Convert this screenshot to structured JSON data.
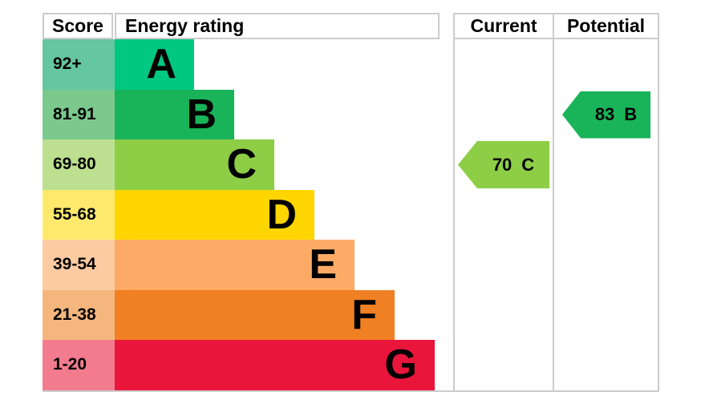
{
  "header": {
    "score": "Score",
    "energy_rating": "Energy rating",
    "current": "Current",
    "potential": "Potential"
  },
  "chart_data": {
    "type": "bar",
    "subtype": "epc-energy-rating",
    "orientation": "horizontal",
    "title": "",
    "categories": [
      "A",
      "B",
      "C",
      "D",
      "E",
      "F",
      "G"
    ],
    "bands": [
      {
        "letter": "A",
        "score_range": "92+",
        "bar_color": "#00c781",
        "score_bg": "#65c6a1",
        "relative_length": 1
      },
      {
        "letter": "B",
        "score_range": "81-91",
        "bar_color": "#19b459",
        "score_bg": "#7bc98c",
        "relative_length": 2
      },
      {
        "letter": "C",
        "score_range": "69-80",
        "bar_color": "#8dce46",
        "score_bg": "#bce08f",
        "relative_length": 3
      },
      {
        "letter": "D",
        "score_range": "55-68",
        "bar_color": "#ffd500",
        "score_bg": "#ffe96d",
        "relative_length": 4
      },
      {
        "letter": "E",
        "score_range": "39-54",
        "bar_color": "#fcaa65",
        "score_bg": "#fdcba2",
        "relative_length": 5
      },
      {
        "letter": "F",
        "score_range": "21-38",
        "bar_color": "#ef8023",
        "score_bg": "#f5b67d",
        "relative_length": 6
      },
      {
        "letter": "G",
        "score_range": "1-20",
        "bar_color": "#e9153b",
        "score_bg": "#f27c8e",
        "relative_length": 7
      }
    ],
    "current": {
      "value": "70",
      "letter": "C",
      "band_index": 2,
      "color": "#8dce46"
    },
    "potential": {
      "value": "83",
      "letter": "B",
      "band_index": 1,
      "color": "#19b459"
    },
    "border_color": "#cccccc",
    "legend": "off",
    "grid": "off"
  }
}
